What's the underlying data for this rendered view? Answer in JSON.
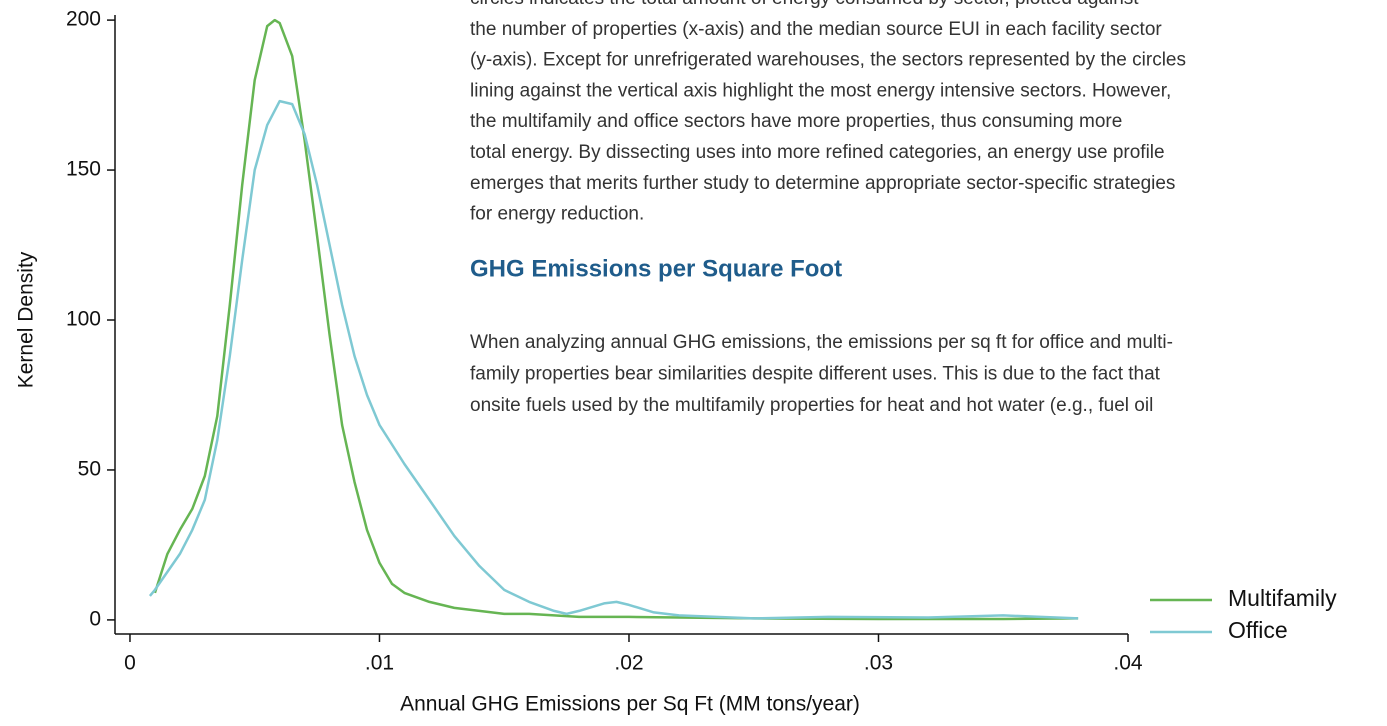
{
  "chart_data": {
    "type": "line",
    "xlabel": "Annual GHG Emissions per Sq Ft (MM tons/year)",
    "ylabel": "Kernel Density",
    "xlim": [
      -0.0006,
      0.04
    ],
    "ylim": [
      -4.7,
      201.7
    ],
    "xticks": [
      0,
      {
        "value": 0.01,
        "label": ".01"
      },
      {
        "value": 0.02,
        "label": ".02"
      },
      {
        "value": 0.03,
        "label": ".03"
      },
      {
        "value": 0.04,
        "label": ".04"
      }
    ],
    "yticks": [
      0,
      50,
      100,
      150,
      200
    ],
    "legend": "lower right",
    "series": [
      {
        "name": "Multifamily",
        "color": "#66b553",
        "x": [
          0.001,
          0.0015,
          0.002,
          0.0025,
          0.003,
          0.0035,
          0.004,
          0.0045,
          0.005,
          0.0055,
          0.0058,
          0.006,
          0.0065,
          0.007,
          0.0075,
          0.008,
          0.0085,
          0.009,
          0.0095,
          0.01,
          0.0105,
          0.011,
          0.012,
          0.013,
          0.014,
          0.015,
          0.016,
          0.018,
          0.02,
          0.025,
          0.03,
          0.035,
          0.038
        ],
        "values": [
          9,
          22,
          30,
          37,
          48,
          68,
          105,
          145,
          180,
          198,
          200,
          199,
          188,
          160,
          128,
          95,
          65,
          46,
          30,
          19,
          12,
          9,
          6,
          4,
          3,
          2,
          2,
          1,
          1,
          0.5,
          0.3,
          0.3,
          0.5
        ]
      },
      {
        "name": "Office",
        "color": "#7fc9d3",
        "x": [
          0.0008,
          0.001,
          0.0015,
          0.002,
          0.0025,
          0.003,
          0.0035,
          0.004,
          0.0045,
          0.005,
          0.0055,
          0.006,
          0.0065,
          0.007,
          0.0075,
          0.008,
          0.0085,
          0.009,
          0.0095,
          0.01,
          0.011,
          0.012,
          0.013,
          0.014,
          0.015,
          0.016,
          0.017,
          0.0175,
          0.018,
          0.019,
          0.0195,
          0.02,
          0.021,
          0.022,
          0.025,
          0.028,
          0.032,
          0.035,
          0.038
        ],
        "values": [
          8,
          10,
          16,
          22,
          30,
          40,
          60,
          88,
          120,
          150,
          165,
          173,
          172,
          162,
          145,
          125,
          105,
          88,
          75,
          65,
          52,
          40,
          28,
          18,
          10,
          6,
          3,
          2,
          3,
          5.5,
          6,
          5,
          2.5,
          1.5,
          0.5,
          1,
          0.8,
          1.5,
          0.5
        ]
      }
    ]
  },
  "document": {
    "paragraph_1": [
      "circles indicates the total amount of energy consumed by sector, plotted against",
      "the number of properties (x-axis) and the median source EUI in each facility sector",
      "(y-axis). Except for unrefrigerated warehouses, the sectors represented by the circles",
      "lining against the vertical axis highlight the most energy intensive sectors. However,",
      "the multifamily and office sectors have more properties, thus consuming more",
      "total energy. By dissecting uses into more refined categories, an energy use profile",
      "emerges that merits further study to determine appropriate sector-specific strategies",
      "for energy reduction."
    ],
    "heading": "GHG Emissions per Square Foot",
    "paragraph_2": [
      "When analyzing annual GHG emissions, the emissions per sq ft for office and multi-",
      "family properties bear similarities despite different uses. This is due to the fact that",
      "onsite fuels used by the multifamily properties for heat and hot water (e.g., fuel oil"
    ]
  }
}
